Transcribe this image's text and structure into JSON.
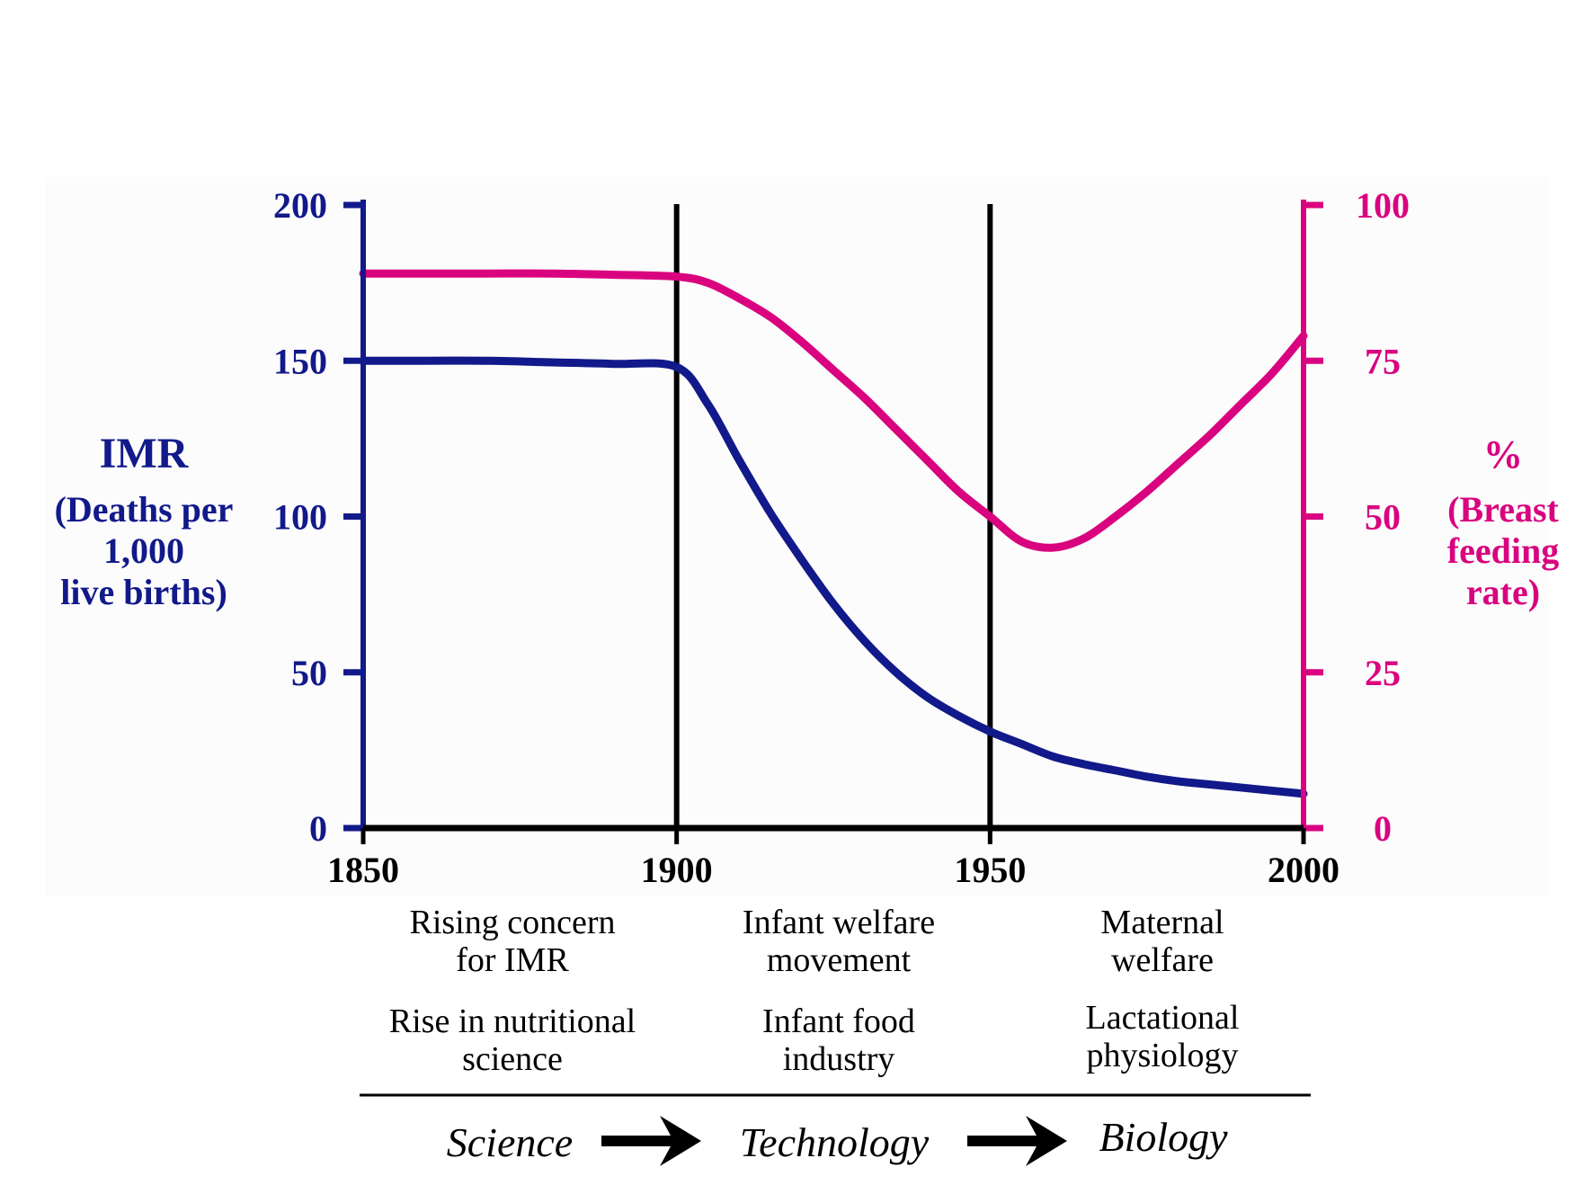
{
  "chart_data": {
    "type": "line",
    "title": "",
    "x": [
      1850,
      1860,
      1870,
      1880,
      1890,
      1900,
      1905,
      1910,
      1915,
      1920,
      1925,
      1930,
      1935,
      1940,
      1945,
      1950,
      1955,
      1960,
      1965,
      1970,
      1975,
      1980,
      1985,
      1990,
      1995,
      2000
    ],
    "series": [
      {
        "name": "IMR (Deaths per 1,000 live births)",
        "axis": "left",
        "color": "#12198a",
        "values": [
          150,
          150,
          150,
          149.5,
          149,
          148,
          136,
          118,
          101,
          86,
          72,
          60,
          50,
          42,
          36,
          31,
          27,
          23,
          20.5,
          18.5,
          16.5,
          15,
          14,
          13,
          12,
          11
        ]
      },
      {
        "name": "% Breast feeding rate",
        "axis": "right",
        "color": "#d9027f",
        "values": [
          89,
          89,
          89,
          89,
          88.8,
          88.5,
          87.5,
          85,
          82,
          78,
          73.5,
          69,
          64,
          59,
          54,
          50,
          46,
          45,
          46.5,
          50,
          54,
          58.5,
          63,
          68,
          73,
          79
        ]
      }
    ],
    "xlabel": "",
    "xticks": [
      "1850",
      "1900",
      "1950",
      "2000"
    ],
    "xlim": [
      1850,
      2000
    ],
    "y_left": {
      "label_lines": [
        "IMR",
        "(Deaths per",
        "1,000",
        "live births)"
      ],
      "ticks": [
        "0",
        "50",
        "100",
        "150",
        "200"
      ],
      "ylim": [
        0,
        200
      ],
      "color": "#12198a"
    },
    "y_right": {
      "label_lines": [
        "%",
        "(Breast",
        "feeding",
        "rate)"
      ],
      "ticks": [
        "0",
        "25",
        "50",
        "75",
        "100"
      ],
      "ylim": [
        0,
        100
      ],
      "color": "#d9027f"
    },
    "vertical_markers": [
      1900,
      1950
    ],
    "grid": false,
    "legend": "none",
    "annotations": {
      "periods": [
        {
          "center": 1875,
          "top_lines": [
            "Rising concern",
            "for IMR"
          ],
          "bottom_lines": [
            "Rise in nutritional",
            "science"
          ]
        },
        {
          "center": 1925,
          "top_lines": [
            "Infant welfare",
            "movement"
          ],
          "bottom_lines": [
            "Infant food",
            "industry"
          ]
        },
        {
          "center": 1975,
          "top_lines": [
            "Maternal",
            "welfare"
          ],
          "bottom_lines": [
            "Lactational",
            "physiology"
          ]
        }
      ],
      "flow": [
        "Science",
        "Technology",
        "Biology"
      ]
    }
  }
}
